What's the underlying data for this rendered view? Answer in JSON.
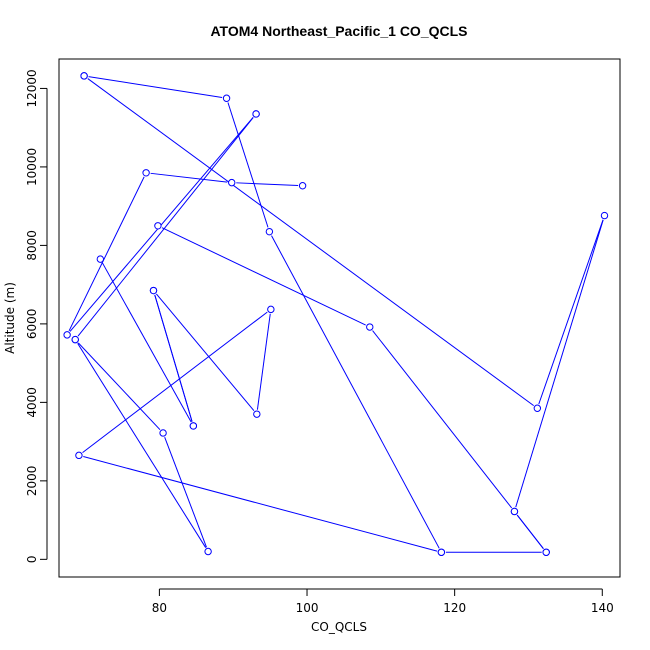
{
  "chart_data": {
    "type": "line",
    "title": "ATOM4 Northeast_Pacific_1 CO_QCLS",
    "xlabel": "CO_QCLS",
    "ylabel": "Altitude (m)",
    "xlim": [
      66.4,
      142.4
    ],
    "ylim": [
      -450,
      12750
    ],
    "x_ticks": [
      80,
      100,
      120,
      140
    ],
    "y_ticks": [
      0,
      2000,
      4000,
      6000,
      8000,
      10000,
      12000
    ],
    "x_tick_labels": [
      "80",
      "100",
      "120",
      "140"
    ],
    "y_tick_labels": [
      "0",
      "2000",
      "4000",
      "6000",
      "8000",
      "10000",
      "12000"
    ],
    "grid": false,
    "series": [
      {
        "color": "#0000ff",
        "x": [
          69.8,
          89.1,
          94.9,
          118.2,
          132.4,
          128.1,
          140.3,
          131.2,
          69.8
        ],
        "y": [
          12320,
          11750,
          8350,
          180,
          180,
          1220,
          8760,
          3850,
          12320
        ]
      },
      {
        "color": "#0000ff",
        "x": [
          93.1,
          67.5,
          78.2,
          89.8,
          99.4
        ],
        "y": [
          11350,
          5720,
          9850,
          9600,
          9520
        ]
      },
      {
        "color": "#0000ff",
        "x": [
          93.1,
          68.6,
          80.5,
          86.6,
          68.6
        ],
        "y": [
          11350,
          5600,
          3220,
          200,
          5600
        ]
      },
      {
        "color": "#0000ff",
        "x": [
          79.8,
          108.5,
          128.1,
          132.4
        ],
        "y": [
          8500,
          5920,
          1220,
          180
        ]
      },
      {
        "color": "#0000ff",
        "x": [
          72.0,
          84.6
        ],
        "y": [
          7650,
          3400
        ]
      },
      {
        "color": "#0000ff",
        "x": [
          79.2,
          84.6,
          79.2,
          93.2,
          95.1,
          69.1,
          118.2
        ],
        "y": [
          6850,
          3400,
          6850,
          3700,
          6370,
          2650,
          180
        ]
      }
    ]
  }
}
